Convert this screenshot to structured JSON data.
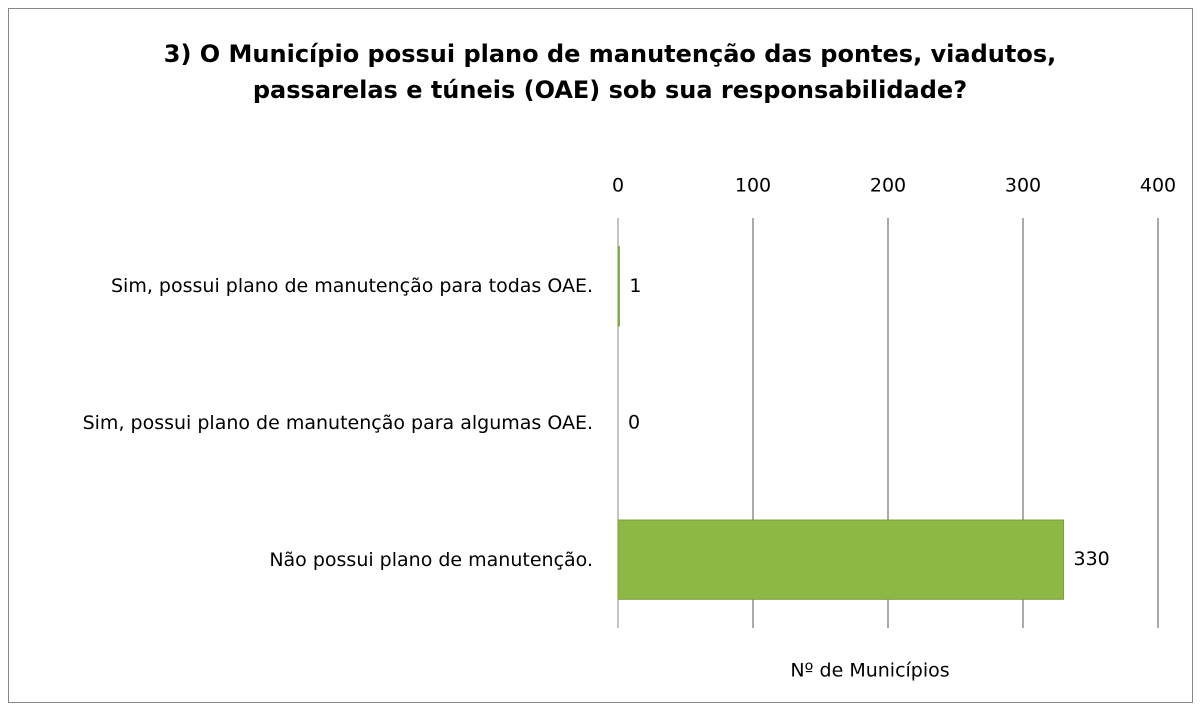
{
  "chart_data": {
    "type": "bar",
    "orientation": "horizontal",
    "title": "3) O Município possui plano de manutenção das pontes, viadutos, passarelas e túneis (OAE) sob sua responsabilidade?",
    "categories": [
      "Sim, possui plano de manutenção para todas OAE.",
      "Sim, possui plano de manutenção para algumas OAE.",
      "Não possui plano de manutenção."
    ],
    "values": [
      1,
      0,
      330
    ],
    "color": "#8db844",
    "xlabel": "Nº de Municípios",
    "xlim": [
      0,
      400
    ],
    "xticks": [
      0,
      100,
      200,
      300,
      400
    ],
    "grid": true
  }
}
